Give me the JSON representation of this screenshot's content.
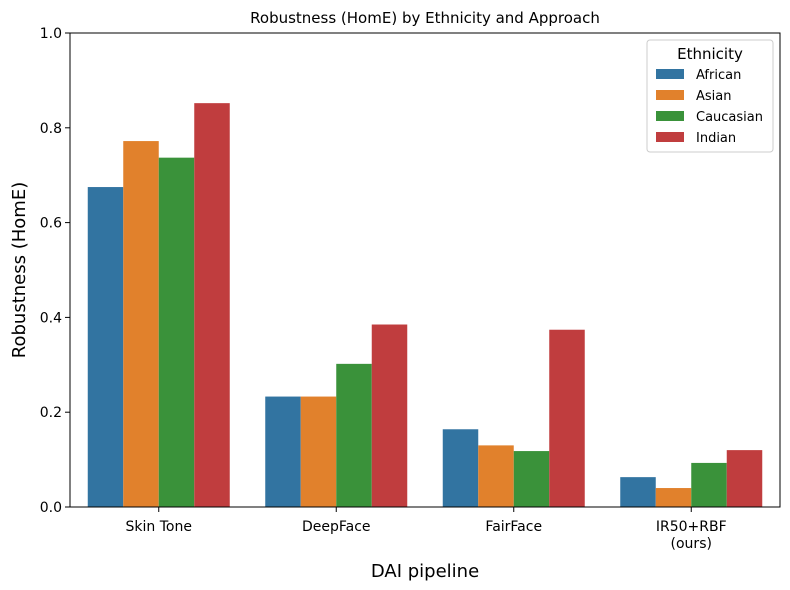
{
  "chart_data": {
    "type": "bar",
    "title": "Robustness (HomE) by Ethnicity and Approach",
    "xlabel": "DAI pipeline",
    "ylabel": "Robustness (HomE)",
    "ylim": [
      0,
      1.0
    ],
    "yticks": [
      "0.0",
      "0.2",
      "0.4",
      "0.6",
      "0.8",
      "1.0"
    ],
    "categories": [
      [
        "Skin Tone"
      ],
      [
        "DeepFace"
      ],
      [
        "FairFace"
      ],
      [
        "IR50+RBF",
        "(ours)"
      ]
    ],
    "legend": {
      "title": "Ethnicity",
      "placement": "top-right"
    },
    "series": [
      {
        "name": "African",
        "color": "#3274a1",
        "values": [
          0.675,
          0.233,
          0.164,
          0.063
        ]
      },
      {
        "name": "Asian",
        "color": "#e1812c",
        "values": [
          0.772,
          0.233,
          0.13,
          0.04
        ]
      },
      {
        "name": "Caucasian",
        "color": "#3a923a",
        "values": [
          0.737,
          0.302,
          0.118,
          0.093
        ]
      },
      {
        "name": "Indian",
        "color": "#c03d3e",
        "values": [
          0.852,
          0.385,
          0.374,
          0.12
        ]
      }
    ]
  }
}
